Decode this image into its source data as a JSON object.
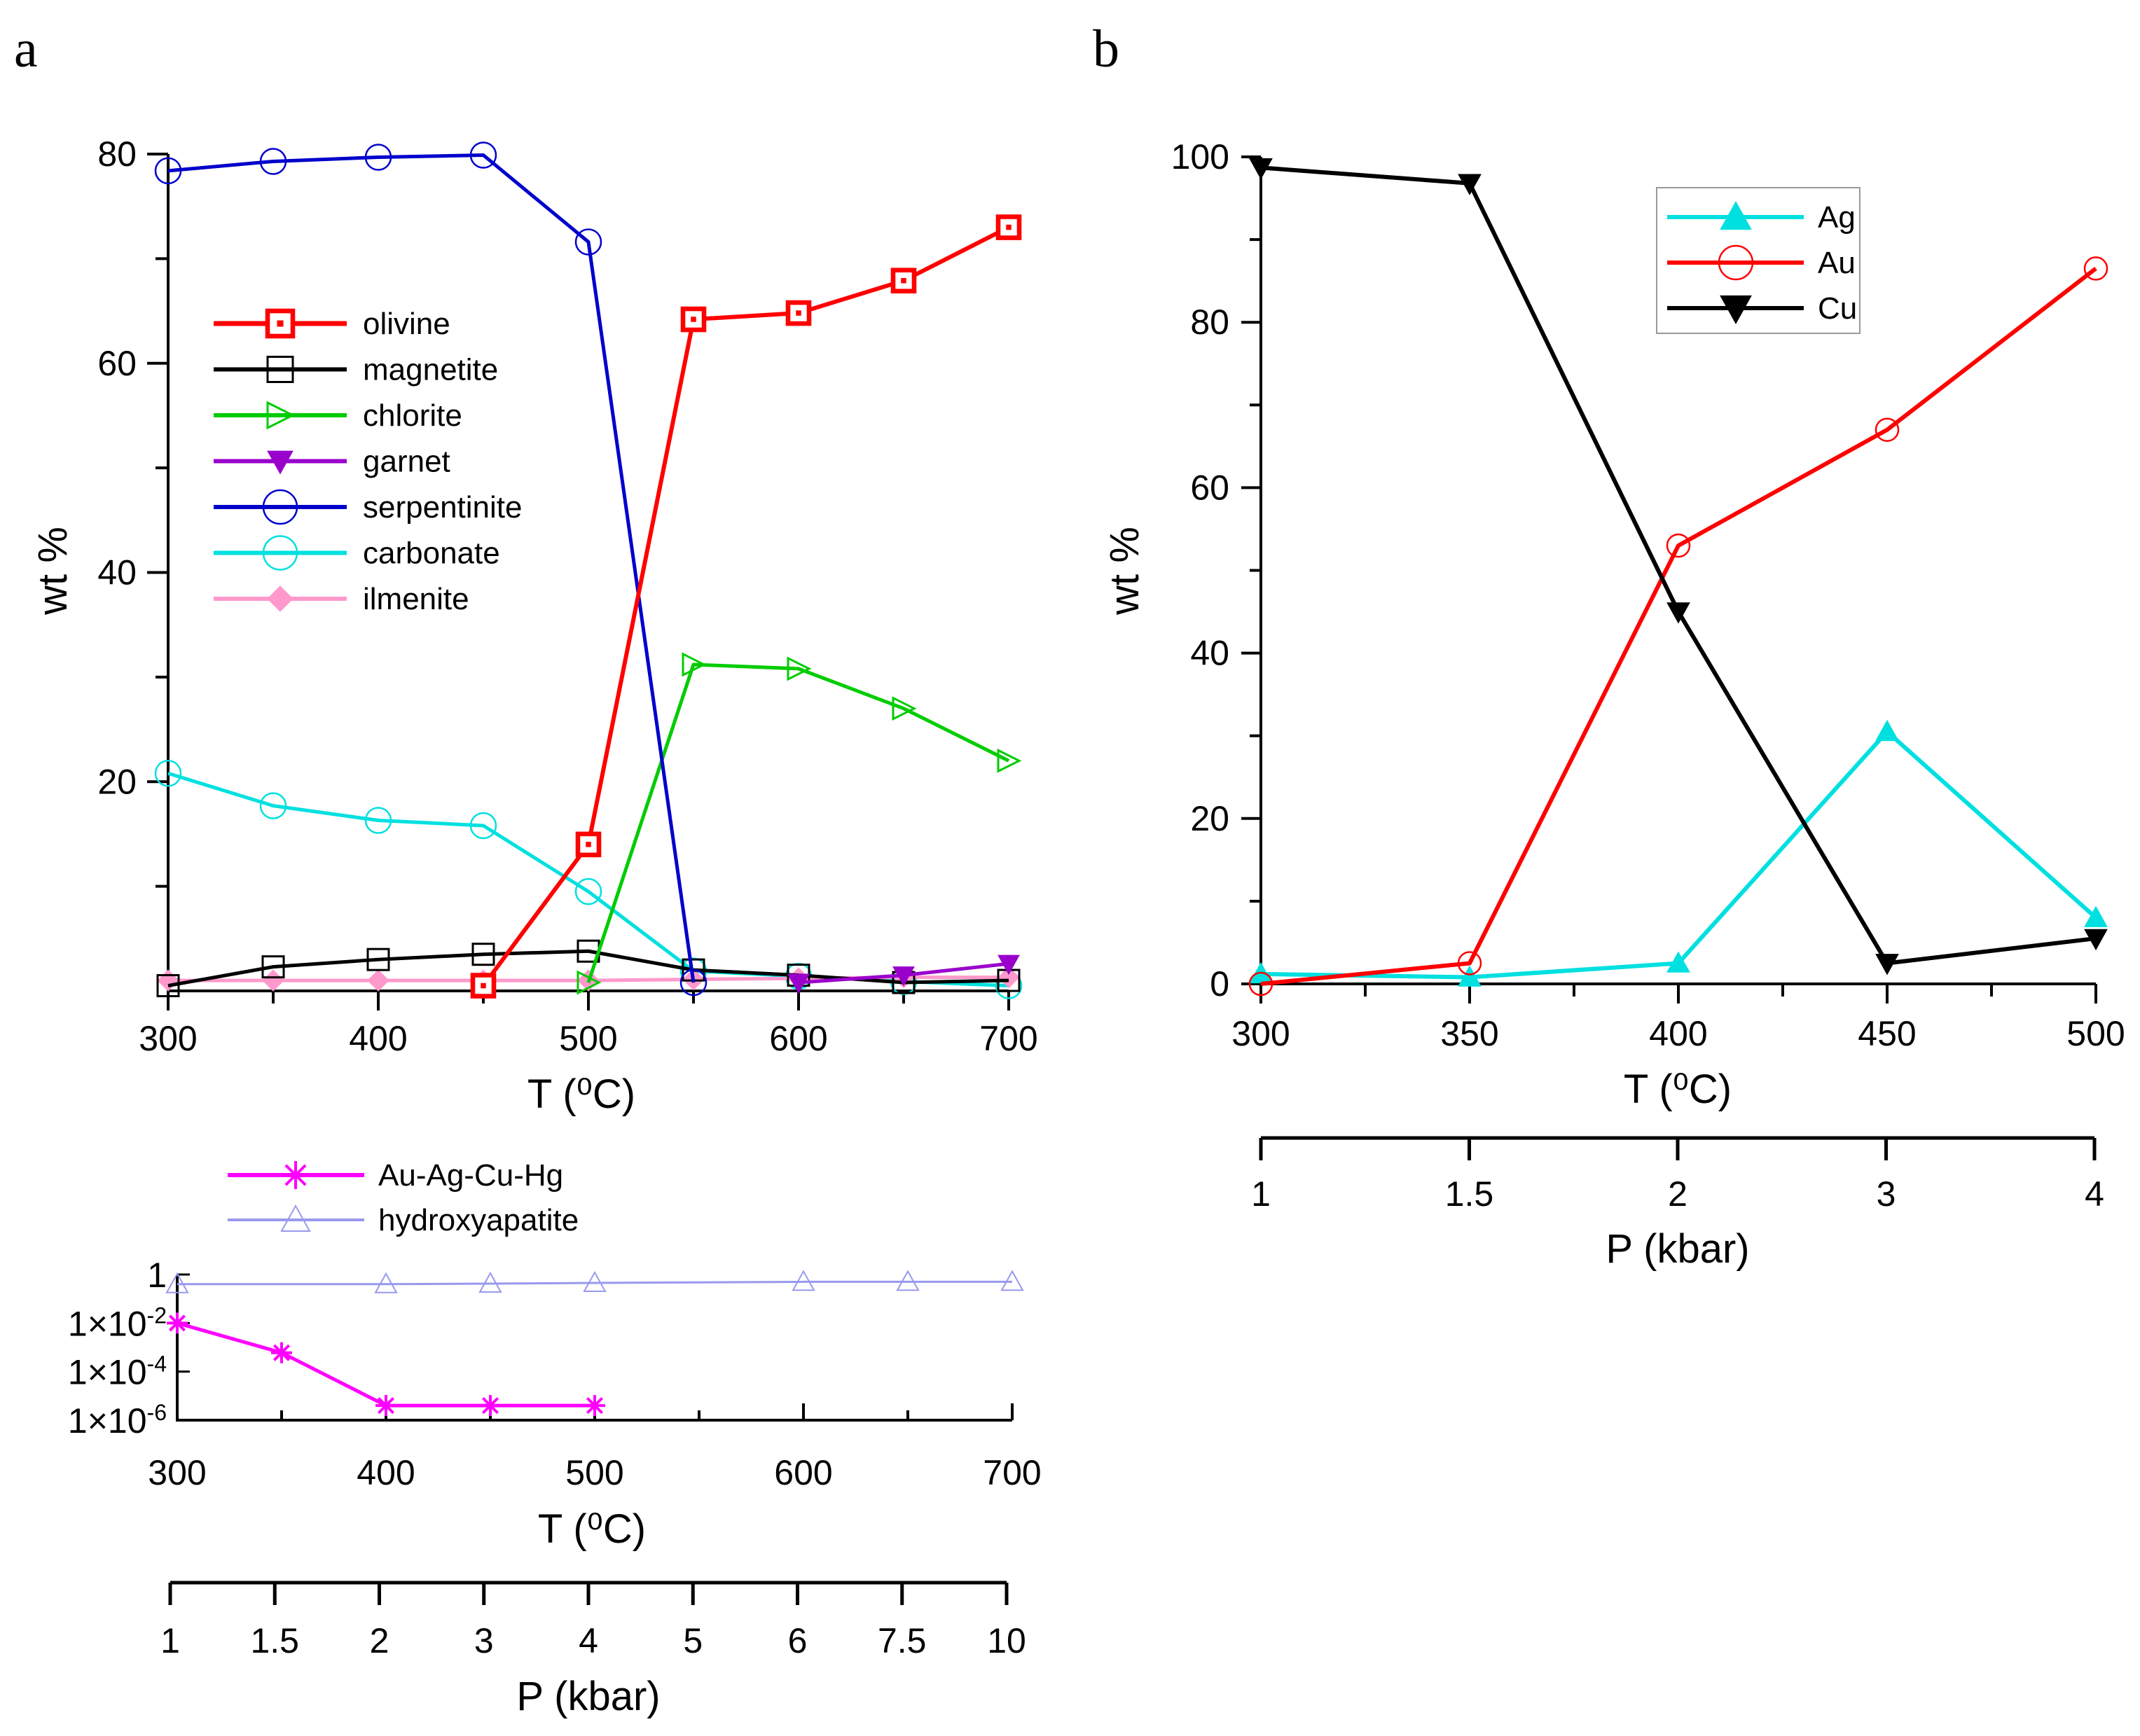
{
  "figure": {
    "panel_a_label": "a",
    "panel_b_label": "b"
  },
  "chart_data": [
    {
      "id": "a-main",
      "type": "line",
      "panel": "a",
      "title": "",
      "xlabel": "T (⁰C)",
      "ylabel": "wt %",
      "xlim": [
        300,
        700
      ],
      "ylim": [
        0,
        80
      ],
      "xticks": [
        300,
        400,
        500,
        600,
        700
      ],
      "yticks": [
        20,
        40,
        60,
        80
      ],
      "legend_position": "upper-left",
      "series": [
        {
          "name": "olivine",
          "color": "#ff0000",
          "marker": "square-dot",
          "x": [
            450,
            500,
            550,
            600,
            650,
            700
          ],
          "values": [
            0.5,
            14,
            64.2,
            64.8,
            67.9,
            73.0
          ]
        },
        {
          "name": "magnetite",
          "color": "#000000",
          "marker": "square-open",
          "x": [
            300,
            350,
            400,
            450,
            500,
            550,
            600,
            650,
            700
          ],
          "values": [
            0.5,
            2.3,
            3.0,
            3.5,
            3.8,
            2.0,
            1.5,
            0.8,
            1.0
          ]
        },
        {
          "name": "chlorite",
          "color": "#00cc00",
          "marker": "triangle-right-open",
          "x": [
            500,
            550,
            600,
            650,
            700
          ],
          "values": [
            0.8,
            31.2,
            30.8,
            27.0,
            22.0
          ]
        },
        {
          "name": "garnet",
          "color": "#9900cc",
          "marker": "triangle-down",
          "x": [
            600,
            650,
            700
          ],
          "values": [
            0.8,
            1.5,
            2.6
          ]
        },
        {
          "name": "serpentinite",
          "color": "#0000cc",
          "marker": "circle-open",
          "x": [
            300,
            350,
            400,
            450,
            500,
            550
          ],
          "values": [
            78.4,
            79.3,
            79.7,
            79.9,
            71.6,
            0.8
          ]
        },
        {
          "name": "carbonate",
          "color": "#00e0e0",
          "marker": "circle-open",
          "x": [
            300,
            350,
            400,
            450,
            500,
            550,
            600,
            650,
            700
          ],
          "values": [
            20.8,
            17.7,
            16.3,
            15.8,
            9.5,
            1.9,
            1.4,
            0.9,
            0.5
          ]
        },
        {
          "name": "ilmenite",
          "color": "#ff99cc",
          "marker": "diamond",
          "x": [
            300,
            350,
            400,
            450,
            500,
            550,
            600,
            650,
            700
          ],
          "values": [
            1.0,
            1.0,
            1.0,
            1.0,
            1.0,
            1.1,
            1.2,
            1.3,
            1.3
          ]
        }
      ],
      "secondary_axis": {
        "xlabel": "P (kbar)",
        "tick_labels": [
          "1",
          "1.5",
          "2",
          "3",
          "4",
          "5",
          "6",
          "7.5",
          "10"
        ]
      }
    },
    {
      "id": "a-log",
      "type": "line",
      "panel": "a",
      "title": "",
      "xlabel": "T (⁰C)",
      "ylabel": "",
      "yscale": "log",
      "xlim": [
        300,
        700
      ],
      "ylim": [
        1e-06,
        1
      ],
      "xticks": [
        300,
        400,
        500,
        600,
        700
      ],
      "ytick_labels": [
        {
          "mantissa": "1",
          "exponent": "",
          "value": 1
        },
        {
          "mantissa": "1×10",
          "exponent": "-2",
          "value": 0.01
        },
        {
          "mantissa": "1×10",
          "exponent": "-4",
          "value": 0.0001
        },
        {
          "mantissa": "1×10",
          "exponent": "-6",
          "value": 1e-06
        }
      ],
      "legend_position": "top",
      "series": [
        {
          "name": "Au-Ag-Cu-Hg",
          "color": "#ff00ff",
          "marker": "asterisk",
          "x": [
            300,
            350,
            400,
            450,
            500
          ],
          "values": [
            0.01,
            0.0006,
            4e-06,
            4e-06,
            4e-06
          ]
        },
        {
          "name": "hydroxyapatite",
          "color": "#9999ee",
          "marker": "triangle-up-open",
          "x": [
            300,
            400,
            450,
            500,
            600,
            650,
            700
          ],
          "values": [
            0.4,
            0.4,
            0.42,
            0.45,
            0.5,
            0.5,
            0.5
          ]
        }
      ]
    },
    {
      "id": "b-main",
      "type": "line",
      "panel": "b",
      "title": "",
      "xlabel": "T (⁰C)",
      "ylabel": "wt %",
      "xlim": [
        300,
        500
      ],
      "ylim": [
        0,
        100
      ],
      "xticks": [
        300,
        350,
        400,
        450,
        500
      ],
      "yticks": [
        0,
        20,
        40,
        60,
        80,
        100
      ],
      "legend_position": "top-center",
      "series": [
        {
          "name": "Ag",
          "color": "#00e0e0",
          "marker": "triangle-up",
          "x": [
            300,
            350,
            400,
            450,
            500
          ],
          "values": [
            1.2,
            0.8,
            2.5,
            30.5,
            8.0
          ]
        },
        {
          "name": "Au",
          "color": "#ff0000",
          "marker": "circle-open",
          "x": [
            300,
            350,
            400,
            450,
            500
          ],
          "values": [
            0.0,
            2.5,
            53.0,
            67.0,
            86.5
          ]
        },
        {
          "name": "Cu",
          "color": "#000000",
          "marker": "triangle-down",
          "x": [
            300,
            350,
            400,
            450,
            500
          ],
          "values": [
            98.7,
            96.8,
            45.0,
            2.5,
            5.5
          ]
        }
      ],
      "secondary_axis": {
        "xlabel": "P (kbar)",
        "tick_labels": [
          "1",
          "1.5",
          "2",
          "3",
          "4"
        ]
      }
    }
  ]
}
